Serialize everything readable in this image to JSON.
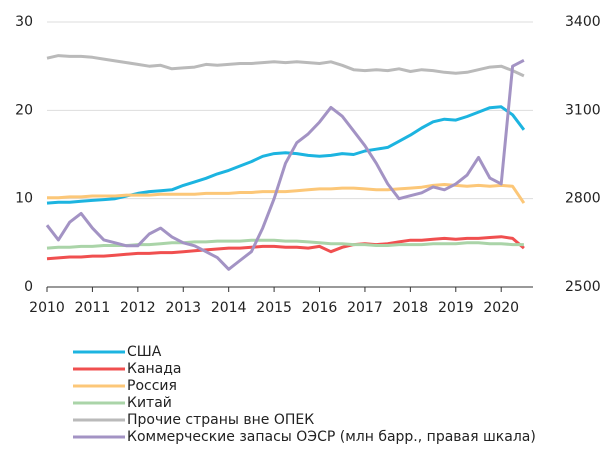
{
  "chart_data": {
    "type": "line",
    "x": [
      2010,
      2010.25,
      2010.5,
      2010.75,
      2011,
      2011.25,
      2011.5,
      2011.75,
      2012,
      2012.25,
      2012.5,
      2012.75,
      2013,
      2013.25,
      2013.5,
      2013.75,
      2014,
      2014.25,
      2014.5,
      2014.75,
      2015,
      2015.25,
      2015.5,
      2015.75,
      2016,
      2016.25,
      2016.5,
      2016.75,
      2017,
      2017.25,
      2017.5,
      2017.75,
      2018,
      2018.25,
      2018.5,
      2018.75,
      2019,
      2019.25,
      2019.5,
      2019.75,
      2020,
      2020.25,
      2020.5
    ],
    "xlim": [
      2010,
      2020.7
    ],
    "xticks": [
      2010,
      2011,
      2012,
      2013,
      2014,
      2015,
      2016,
      2017,
      2018,
      2019,
      2020
    ],
    "ylim": [
      0,
      30
    ],
    "yticks": [
      0,
      10,
      20,
      30
    ],
    "y2lim": [
      2500,
      3400
    ],
    "y2ticks": [
      2500,
      2800,
      3100,
      3400
    ],
    "grid": true,
    "series": [
      {
        "name": "США",
        "color": "#1cb4e0",
        "values": [
          9.5,
          9.6,
          9.6,
          9.7,
          9.8,
          9.9,
          10.0,
          10.3,
          10.6,
          10.8,
          10.9,
          11.0,
          11.5,
          11.9,
          12.3,
          12.8,
          13.2,
          13.7,
          14.2,
          14.8,
          15.1,
          15.2,
          15.1,
          14.9,
          14.8,
          14.9,
          15.1,
          15.0,
          15.4,
          15.6,
          15.8,
          16.5,
          17.2,
          18.0,
          18.7,
          19.0,
          18.9,
          19.3,
          19.8,
          20.3,
          20.4,
          19.5,
          17.8
        ]
      },
      {
        "name": "Канада",
        "color": "#f04f4f",
        "values": [
          3.2,
          3.3,
          3.4,
          3.4,
          3.5,
          3.5,
          3.6,
          3.7,
          3.8,
          3.8,
          3.9,
          3.9,
          4.0,
          4.1,
          4.2,
          4.3,
          4.4,
          4.4,
          4.5,
          4.6,
          4.6,
          4.5,
          4.5,
          4.4,
          4.6,
          4.0,
          4.5,
          4.8,
          4.9,
          4.8,
          4.9,
          5.1,
          5.3,
          5.3,
          5.4,
          5.5,
          5.4,
          5.5,
          5.5,
          5.6,
          5.7,
          5.5,
          4.4
        ]
      },
      {
        "name": "Россия",
        "color": "#fcc778",
        "values": [
          10.1,
          10.1,
          10.2,
          10.2,
          10.3,
          10.3,
          10.3,
          10.4,
          10.4,
          10.4,
          10.5,
          10.5,
          10.5,
          10.5,
          10.6,
          10.6,
          10.6,
          10.7,
          10.7,
          10.8,
          10.8,
          10.8,
          10.9,
          11.0,
          11.1,
          11.1,
          11.2,
          11.2,
          11.1,
          11.0,
          11.0,
          11.1,
          11.2,
          11.3,
          11.5,
          11.6,
          11.5,
          11.4,
          11.5,
          11.4,
          11.5,
          11.4,
          9.5
        ]
      },
      {
        "name": "Китай",
        "color": "#aad4a8",
        "values": [
          4.4,
          4.5,
          4.5,
          4.6,
          4.6,
          4.7,
          4.7,
          4.7,
          4.8,
          4.8,
          4.9,
          5.0,
          5.0,
          5.1,
          5.1,
          5.2,
          5.2,
          5.2,
          5.3,
          5.3,
          5.3,
          5.2,
          5.2,
          5.1,
          5.0,
          4.9,
          4.9,
          4.8,
          4.8,
          4.7,
          4.7,
          4.8,
          4.8,
          4.8,
          4.9,
          4.9,
          4.9,
          5.0,
          5.0,
          4.9,
          4.9,
          4.8,
          4.8
        ]
      },
      {
        "name": "Прочие страны вне ОПЕК",
        "color": "#bababa",
        "values": [
          25.9,
          26.2,
          26.1,
          26.1,
          26.0,
          25.8,
          25.6,
          25.4,
          25.2,
          25.0,
          25.1,
          24.7,
          24.8,
          24.9,
          25.2,
          25.1,
          25.2,
          25.3,
          25.3,
          25.4,
          25.5,
          25.4,
          25.5,
          25.4,
          25.3,
          25.5,
          25.1,
          24.6,
          24.5,
          24.6,
          24.5,
          24.7,
          24.4,
          24.6,
          24.5,
          24.3,
          24.2,
          24.3,
          24.6,
          24.9,
          25.0,
          24.5,
          23.9
        ]
      },
      {
        "name": "Коммерческие запасы ОЭСР (млн барр., правая шкала)",
        "color": "#a393c4",
        "axis": "y2",
        "values": [
          2710,
          2660,
          2720,
          2750,
          2700,
          2660,
          2650,
          2640,
          2640,
          2680,
          2700,
          2670,
          2650,
          2640,
          2620,
          2600,
          2560,
          2590,
          2620,
          2700,
          2800,
          2920,
          2990,
          3020,
          3060,
          3110,
          3080,
          3030,
          2980,
          2920,
          2850,
          2800,
          2810,
          2820,
          2840,
          2830,
          2850,
          2880,
          2940,
          2870,
          2850,
          3250,
          3270
        ]
      }
    ]
  }
}
